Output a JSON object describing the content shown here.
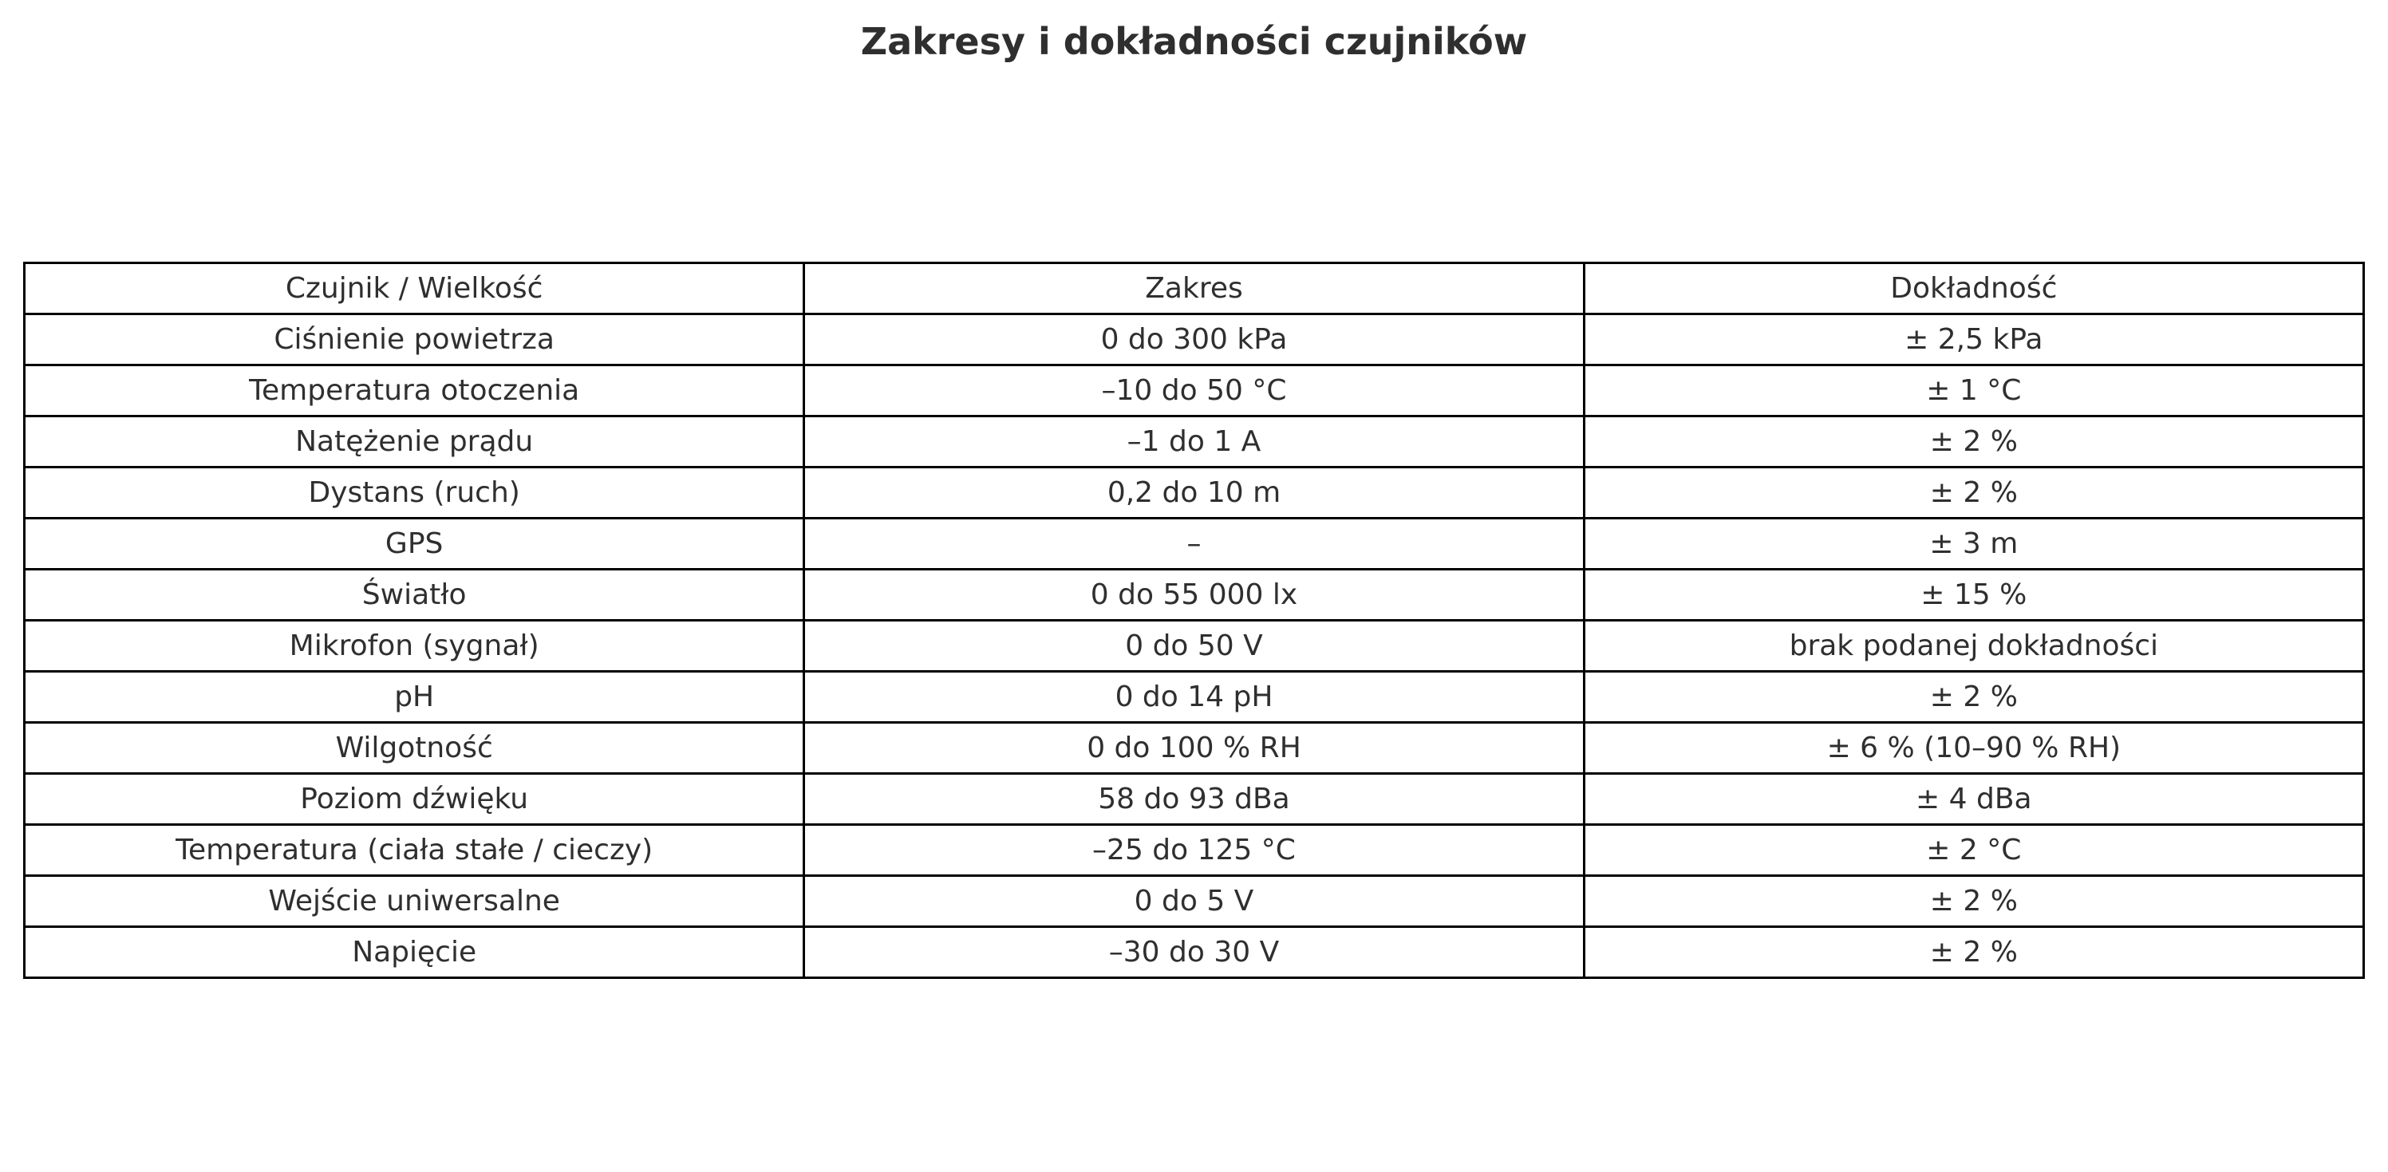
{
  "title": "Zakresy i dokładności czujników",
  "table": {
    "headers": [
      "Czujnik / Wielkość",
      "Zakres",
      "Dokładność"
    ],
    "rows": [
      [
        "Ciśnienie powietrza",
        "0 do 300 kPa",
        "± 2,5 kPa"
      ],
      [
        "Temperatura otoczenia",
        "–10 do 50 °C",
        "± 1 °C"
      ],
      [
        "Natężenie prądu",
        "–1 do 1 A",
        "± 2 %"
      ],
      [
        "Dystans (ruch)",
        "0,2 do 10 m",
        "± 2 %"
      ],
      [
        "GPS",
        "–",
        "± 3 m"
      ],
      [
        "Światło",
        "0 do 55 000 lx",
        "± 15 %"
      ],
      [
        "Mikrofon (sygnał)",
        "0 do 50 V",
        "brak podanej dokładności"
      ],
      [
        "pH",
        "0 do 14 pH",
        "± 2 %"
      ],
      [
        "Wilgotność",
        "0 do 100 % RH",
        "± 6 % (10–90 % RH)"
      ],
      [
        "Poziom dźwięku",
        "58 do 93 dBa",
        "± 4 dBa"
      ],
      [
        "Temperatura (ciała stałe / cieczy)",
        "–25 do 125 °C",
        "± 2 °C"
      ],
      [
        "Wejście uniwersalne",
        "0 do 5 V",
        "± 2 %"
      ],
      [
        "Napięcie",
        "–30 do 30 V",
        "± 2 %"
      ]
    ]
  }
}
